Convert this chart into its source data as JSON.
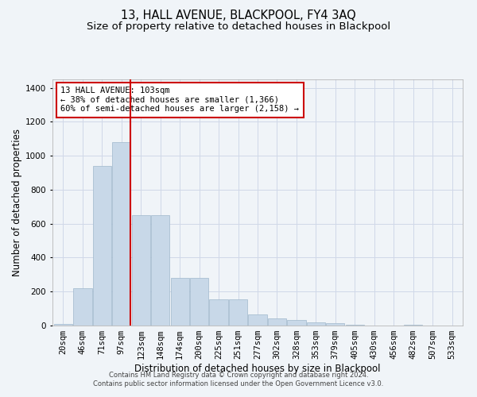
{
  "title": "13, HALL AVENUE, BLACKPOOL, FY4 3AQ",
  "subtitle": "Size of property relative to detached houses in Blackpool",
  "xlabel": "Distribution of detached houses by size in Blackpool",
  "ylabel": "Number of detached properties",
  "bar_labels": [
    "20sqm",
    "46sqm",
    "71sqm",
    "97sqm",
    "123sqm",
    "148sqm",
    "174sqm",
    "200sqm",
    "225sqm",
    "251sqm",
    "277sqm",
    "302sqm",
    "328sqm",
    "353sqm",
    "379sqm",
    "405sqm",
    "430sqm",
    "456sqm",
    "482sqm",
    "507sqm",
    "533sqm"
  ],
  "bar_values": [
    10,
    220,
    940,
    1080,
    650,
    650,
    280,
    280,
    155,
    155,
    65,
    40,
    35,
    20,
    15,
    5,
    0,
    0,
    5,
    0,
    0
  ],
  "bar_color": "#c8d8e8",
  "bar_edge_color": "#a0b8cc",
  "grid_color": "#d0d8e8",
  "background_color": "#f0f4f8",
  "property_size": 103,
  "annotation_text": "13 HALL AVENUE: 103sqm\n← 38% of detached houses are smaller (1,366)\n60% of semi-detached houses are larger (2,158) →",
  "annotation_box_color": "#ffffff",
  "annotation_box_edge": "#cc0000",
  "footer_text": "Contains HM Land Registry data © Crown copyright and database right 2024.\nContains public sector information licensed under the Open Government Licence v3.0.",
  "ylim": [
    0,
    1450
  ],
  "title_fontsize": 10.5,
  "subtitle_fontsize": 9.5,
  "axis_label_fontsize": 8.5,
  "tick_fontsize": 7.5,
  "footer_fontsize": 6.0
}
